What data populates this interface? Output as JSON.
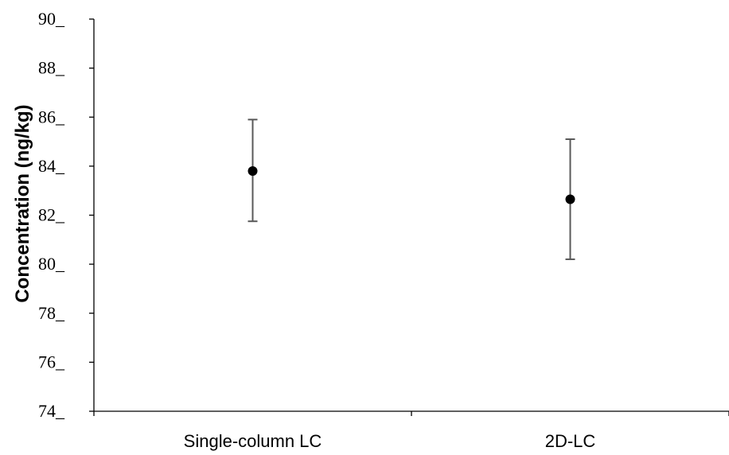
{
  "chart_data": {
    "type": "scatter",
    "title": "",
    "xlabel": "",
    "ylabel": "Concentration (ng/kg)",
    "categories": [
      "Single-column LC",
      "2D-LC"
    ],
    "series": [
      {
        "values": [
          83.8,
          82.65
        ],
        "error_low": [
          81.75,
          80.2
        ],
        "error_high": [
          85.9,
          85.1
        ]
      }
    ],
    "ylim": [
      74,
      90
    ],
    "yticks": [
      "74",
      "76",
      "78",
      "80",
      "82",
      "84",
      "86",
      "88",
      "90"
    ],
    "grid": false,
    "legend": "none",
    "colors": {
      "marker": "#000000",
      "errorbar": "#595959",
      "axis": "#000000"
    }
  }
}
